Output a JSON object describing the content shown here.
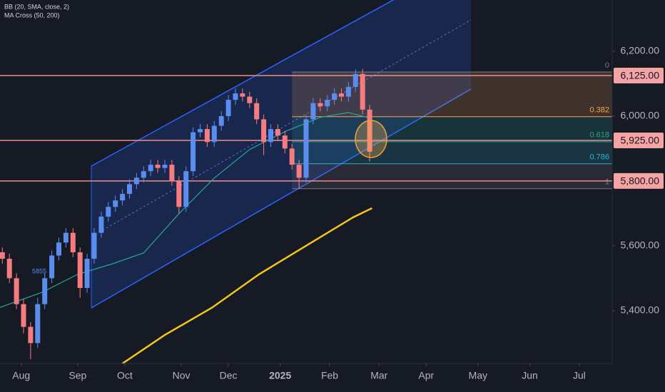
{
  "chart_data": {
    "type": "candlestick",
    "indicators": [
      "BB (20, SMA, close, 2)",
      "MA Cross (50, 200)"
    ],
    "annotations": [
      {
        "text": "5855"
      }
    ],
    "xlim": [
      0,
      260
    ],
    "ylim": [
      5237,
      6358
    ],
    "xticks": [
      {
        "value": 9,
        "label": "Aug"
      },
      {
        "value": 33,
        "label": "Sep"
      },
      {
        "value": 53,
        "label": "Oct"
      },
      {
        "value": 77,
        "label": "Nov"
      },
      {
        "value": 97,
        "label": "Dec"
      },
      {
        "value": 119,
        "label": "2025",
        "bold": true
      },
      {
        "value": 140,
        "label": "Feb"
      },
      {
        "value": 161,
        "label": "Mar"
      },
      {
        "value": 181,
        "label": "Apr"
      },
      {
        "value": 203,
        "label": "May"
      },
      {
        "value": 225,
        "label": "Jun"
      },
      {
        "value": 246,
        "label": "Jul"
      }
    ],
    "yticks": [
      {
        "value": 6200,
        "label": "6,200.00"
      },
      {
        "value": 6000,
        "label": "6,000.00"
      },
      {
        "value": 5600,
        "label": "5,600.00"
      },
      {
        "value": 5400,
        "label": "5,400.00"
      }
    ],
    "levels": [
      {
        "value": 6125,
        "label": "6,125.00"
      },
      {
        "value": 5925,
        "label": "5,925.00"
      },
      {
        "value": 5800,
        "label": "5,800.00"
      }
    ],
    "level_color": "#f28b8b",
    "fib": {
      "start": 124,
      "labels": [
        "0",
        "0.382",
        "0.618",
        "0.786",
        "1"
      ],
      "values": [
        6136,
        5998,
        5921,
        5853,
        5776
      ],
      "colors": [
        "#787b86",
        "#f7a350",
        "#26a69a",
        "#2fb4c4",
        "#787b86"
      ]
    },
    "up_color": "#5b8def",
    "down_color": "#f77c80",
    "x": [
      1,
      4,
      7,
      10,
      13,
      16,
      19,
      22,
      25,
      28,
      31,
      34,
      37,
      40,
      43,
      46,
      49,
      52,
      55,
      58,
      61,
      64,
      67,
      70,
      73,
      76,
      79,
      82,
      85,
      88,
      91,
      94,
      97,
      100,
      103,
      106,
      109,
      112,
      115,
      118,
      121,
      124,
      127,
      130,
      133,
      136,
      139,
      142,
      145,
      148,
      151,
      154,
      157
    ],
    "open": [
      5580,
      5560,
      5500,
      5420,
      5350,
      5300,
      5420,
      5500,
      5570,
      5610,
      5640,
      5580,
      5470,
      5560,
      5640,
      5690,
      5720,
      5740,
      5760,
      5790,
      5810,
      5830,
      5850,
      5840,
      5850,
      5800,
      5720,
      5830,
      5950,
      5960,
      5920,
      5970,
      6000,
      6050,
      6070,
      6060,
      6040,
      5990,
      5920,
      5960,
      5940,
      5900,
      5850,
      5810,
      5990,
      6040,
      6030,
      6050,
      6070,
      6060,
      6090,
      6130,
      6020
    ],
    "high": [
      5595,
      5575,
      5515,
      5435,
      5365,
      5440,
      5515,
      5585,
      5625,
      5655,
      5655,
      5595,
      5575,
      5655,
      5705,
      5735,
      5755,
      5775,
      5805,
      5825,
      5845,
      5865,
      5865,
      5865,
      5865,
      5815,
      5845,
      5965,
      5975,
      5975,
      5985,
      6015,
      6065,
      6085,
      6085,
      6075,
      6055,
      6005,
      5975,
      5975,
      5955,
      5915,
      5865,
      6005,
      6055,
      6055,
      6065,
      6085,
      6085,
      6105,
      6145,
      6145,
      6035
    ],
    "low": [
      5545,
      5485,
      5405,
      5330,
      5250,
      5285,
      5405,
      5485,
      5555,
      5595,
      5565,
      5440,
      5455,
      5545,
      5625,
      5675,
      5705,
      5725,
      5745,
      5775,
      5795,
      5815,
      5825,
      5825,
      5785,
      5700,
      5705,
      5815,
      5935,
      5905,
      5905,
      5955,
      5985,
      6035,
      6045,
      6025,
      5975,
      5880,
      5905,
      5925,
      5885,
      5835,
      5775,
      5795,
      5975,
      6015,
      6015,
      6035,
      6045,
      6045,
      6075,
      6005,
      5860
    ],
    "close": [
      5560,
      5500,
      5420,
      5350,
      5300,
      5420,
      5500,
      5570,
      5610,
      5640,
      5580,
      5470,
      5560,
      5640,
      5690,
      5720,
      5740,
      5760,
      5790,
      5810,
      5830,
      5850,
      5840,
      5850,
      5800,
      5720,
      5830,
      5950,
      5960,
      5920,
      5970,
      6000,
      6050,
      6070,
      6060,
      6040,
      5990,
      5920,
      5960,
      5940,
      5900,
      5850,
      5810,
      5990,
      6040,
      6030,
      6050,
      6070,
      6060,
      6090,
      6130,
      6020,
      5890
    ],
    "series": [
      {
        "name": "MA 50",
        "color": "#26a69a",
        "x": [
          0,
          18,
          33,
          48,
          61,
          76,
          91,
          106,
          121,
          136,
          148,
          156
        ],
        "values": [
          5410,
          5457,
          5512,
          5545,
          5578,
          5699,
          5809,
          5897,
          5952,
          5996,
          6011,
          5996
        ]
      },
      {
        "name": "MA 200",
        "color": "#f5c518",
        "x": [
          52,
          70,
          90,
          110,
          130,
          150,
          158
        ],
        "values": [
          5237,
          5325,
          5409,
          5512,
          5600,
          5688,
          5716
        ]
      }
    ]
  }
}
